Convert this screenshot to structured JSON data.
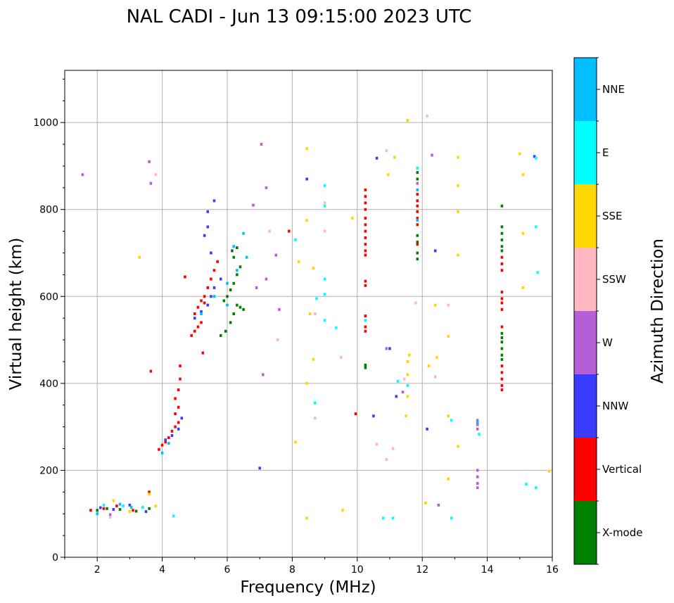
{
  "chart_data": {
    "type": "scatter",
    "title": "NAL CADI - Jun 13 09:15:00 2023 UTC",
    "xlabel": "Frequency (MHz)",
    "ylabel": "Virtual height (km)",
    "xlim": [
      1,
      16
    ],
    "ylim": [
      0,
      1120
    ],
    "xticks": [
      2,
      4,
      6,
      8,
      10,
      12,
      14,
      16
    ],
    "yticks": [
      0,
      200,
      400,
      600,
      800,
      1000
    ],
    "grid": true,
    "colorbar": {
      "label": "Azimuth Direction",
      "categories": [
        {
          "name": "X-mode",
          "color": "#008000"
        },
        {
          "name": "Vertical",
          "color": "#ff0000"
        },
        {
          "name": "NNW",
          "color": "#3b3bff"
        },
        {
          "name": "W",
          "color": "#b65ed6"
        },
        {
          "name": "SSW",
          "color": "#ffb6c1"
        },
        {
          "name": "SSE",
          "color": "#ffd700"
        },
        {
          "name": "E",
          "color": "#00ffff"
        },
        {
          "name": "NNE",
          "color": "#00bfff"
        }
      ]
    },
    "series": [
      {
        "name": "X-mode",
        "points": [
          [
            2.0,
            108
          ],
          [
            2.3,
            112
          ],
          [
            2.7,
            110
          ],
          [
            3.2,
            106
          ],
          [
            3.6,
            112
          ],
          [
            5.8,
            510
          ],
          [
            5.95,
            520
          ],
          [
            6.1,
            540
          ],
          [
            6.2,
            560
          ],
          [
            6.3,
            580
          ],
          [
            6.4,
            575
          ],
          [
            6.5,
            570
          ],
          [
            5.9,
            590
          ],
          [
            6.0,
            600
          ],
          [
            6.1,
            615
          ],
          [
            6.2,
            630
          ],
          [
            6.3,
            650
          ],
          [
            6.4,
            668
          ],
          [
            6.2,
            690
          ],
          [
            6.3,
            712
          ],
          [
            6.15,
            705
          ],
          [
            10.25,
            442
          ],
          [
            10.25,
            436
          ],
          [
            11.85,
            885
          ],
          [
            11.85,
            870
          ],
          [
            11.85,
            740
          ],
          [
            11.85,
            725
          ],
          [
            11.85,
            700
          ],
          [
            11.85,
            686
          ],
          [
            14.45,
            808
          ],
          [
            14.45,
            760
          ],
          [
            14.45,
            745
          ],
          [
            14.45,
            730
          ],
          [
            14.45,
            715
          ],
          [
            14.45,
            705
          ],
          [
            14.45,
            515
          ],
          [
            14.45,
            505
          ],
          [
            14.45,
            495
          ],
          [
            14.45,
            480
          ],
          [
            14.45,
            465
          ],
          [
            14.45,
            455
          ]
        ]
      },
      {
        "name": "Vertical",
        "points": [
          [
            1.8,
            108
          ],
          [
            2.2,
            112
          ],
          [
            2.6,
            118
          ],
          [
            3.1,
            108
          ],
          [
            3.6,
            150
          ],
          [
            3.9,
            248
          ],
          [
            4.0,
            258
          ],
          [
            4.1,
            265
          ],
          [
            4.2,
            275
          ],
          [
            4.3,
            290
          ],
          [
            4.4,
            300
          ],
          [
            4.5,
            310
          ],
          [
            4.4,
            330
          ],
          [
            4.5,
            345
          ],
          [
            4.4,
            365
          ],
          [
            4.5,
            385
          ],
          [
            4.55,
            410
          ],
          [
            4.55,
            440
          ],
          [
            3.65,
            428
          ],
          [
            4.9,
            510
          ],
          [
            5.0,
            520
          ],
          [
            5.1,
            530
          ],
          [
            5.2,
            540
          ],
          [
            5.0,
            560
          ],
          [
            5.1,
            575
          ],
          [
            5.2,
            590
          ],
          [
            5.3,
            600
          ],
          [
            5.4,
            620
          ],
          [
            5.5,
            640
          ],
          [
            5.6,
            660
          ],
          [
            5.7,
            680
          ],
          [
            5.3,
            585
          ],
          [
            5.25,
            470
          ],
          [
            4.7,
            645
          ],
          [
            7.9,
            750
          ],
          [
            9.95,
            330
          ],
          [
            10.25,
            845
          ],
          [
            10.25,
            830
          ],
          [
            10.25,
            815
          ],
          [
            10.25,
            800
          ],
          [
            10.25,
            780
          ],
          [
            10.25,
            765
          ],
          [
            10.25,
            750
          ],
          [
            10.25,
            735
          ],
          [
            10.25,
            720
          ],
          [
            10.25,
            705
          ],
          [
            10.25,
            695
          ],
          [
            10.25,
            635
          ],
          [
            10.25,
            625
          ],
          [
            10.25,
            555
          ],
          [
            10.25,
            530
          ],
          [
            10.25,
            520
          ],
          [
            11.85,
            835
          ],
          [
            11.85,
            820
          ],
          [
            11.85,
            808
          ],
          [
            11.85,
            795
          ],
          [
            11.85,
            780
          ],
          [
            11.85,
            765
          ],
          [
            11.85,
            720
          ],
          [
            14.45,
            690
          ],
          [
            14.45,
            675
          ],
          [
            14.45,
            660
          ],
          [
            14.45,
            610
          ],
          [
            14.45,
            595
          ],
          [
            14.45,
            585
          ],
          [
            14.45,
            570
          ],
          [
            14.45,
            530
          ],
          [
            14.45,
            440
          ],
          [
            14.45,
            425
          ],
          [
            14.45,
            410
          ],
          [
            14.45,
            395
          ],
          [
            14.45,
            385
          ]
        ]
      },
      {
        "name": "NNW",
        "points": [
          [
            2.1,
            114
          ],
          [
            2.5,
            110
          ],
          [
            3.0,
            120
          ],
          [
            3.5,
            105
          ],
          [
            4.1,
            270
          ],
          [
            4.3,
            280
          ],
          [
            4.5,
            295
          ],
          [
            4.6,
            320
          ],
          [
            5.0,
            550
          ],
          [
            5.2,
            565
          ],
          [
            5.4,
            580
          ],
          [
            5.5,
            600
          ],
          [
            5.6,
            620
          ],
          [
            5.8,
            640
          ],
          [
            5.5,
            700
          ],
          [
            5.3,
            740
          ],
          [
            5.4,
            760
          ],
          [
            5.6,
            820
          ],
          [
            5.4,
            795
          ],
          [
            7.0,
            205
          ],
          [
            8.45,
            870
          ],
          [
            10.6,
            918
          ],
          [
            11.2,
            370
          ],
          [
            12.15,
            295
          ],
          [
            12.4,
            705
          ],
          [
            15.45,
            922
          ],
          [
            10.5,
            325
          ],
          [
            11.0,
            480
          ]
        ]
      },
      {
        "name": "W",
        "points": [
          [
            1.55,
            880
          ],
          [
            2.4,
            98
          ],
          [
            3.6,
            910
          ],
          [
            3.65,
            860
          ],
          [
            7.05,
            950
          ],
          [
            7.2,
            850
          ],
          [
            6.8,
            810
          ],
          [
            7.5,
            695
          ],
          [
            7.2,
            640
          ],
          [
            7.6,
            570
          ],
          [
            7.1,
            420
          ],
          [
            6.9,
            620
          ],
          [
            10.9,
            480
          ],
          [
            11.4,
            380
          ],
          [
            12.5,
            120
          ],
          [
            13.7,
            315
          ],
          [
            13.7,
            305
          ],
          [
            13.7,
            295
          ],
          [
            13.7,
            200
          ],
          [
            13.7,
            185
          ],
          [
            13.7,
            170
          ],
          [
            13.7,
            160
          ],
          [
            11.85,
            860
          ],
          [
            12.3,
            925
          ]
        ]
      },
      {
        "name": "SSW",
        "points": [
          [
            2.4,
            92
          ],
          [
            3.8,
            880
          ],
          [
            7.3,
            750
          ],
          [
            7.55,
            500
          ],
          [
            9.0,
            815
          ],
          [
            9.0,
            750
          ],
          [
            8.7,
            560
          ],
          [
            8.7,
            320
          ],
          [
            9.5,
            460
          ],
          [
            10.6,
            260
          ],
          [
            10.9,
            225
          ],
          [
            11.1,
            250
          ],
          [
            10.9,
            935
          ],
          [
            11.45,
            410
          ],
          [
            11.8,
            585
          ],
          [
            12.15,
            1015
          ],
          [
            12.8,
            580
          ],
          [
            12.4,
            415
          ]
        ]
      },
      {
        "name": "SSE",
        "points": [
          [
            2.5,
            130
          ],
          [
            3.0,
            105
          ],
          [
            3.3,
            690
          ],
          [
            3.6,
            145
          ],
          [
            3.8,
            118
          ],
          [
            8.1,
            265
          ],
          [
            8.2,
            680
          ],
          [
            8.45,
            940
          ],
          [
            8.45,
            775
          ],
          [
            8.65,
            665
          ],
          [
            8.65,
            455
          ],
          [
            8.45,
            400
          ],
          [
            8.45,
            90
          ],
          [
            8.55,
            560
          ],
          [
            9.55,
            108
          ],
          [
            9.85,
            780
          ],
          [
            10.95,
            880
          ],
          [
            11.15,
            920
          ],
          [
            11.55,
            1005
          ],
          [
            11.6,
            465
          ],
          [
            11.55,
            450
          ],
          [
            11.55,
            420
          ],
          [
            11.55,
            370
          ],
          [
            11.5,
            325
          ],
          [
            12.1,
            125
          ],
          [
            12.2,
            440
          ],
          [
            12.4,
            580
          ],
          [
            12.45,
            460
          ],
          [
            13.1,
            920
          ],
          [
            13.1,
            855
          ],
          [
            13.1,
            795
          ],
          [
            13.1,
            695
          ],
          [
            13.1,
            255
          ],
          [
            12.8,
            508
          ],
          [
            12.8,
            325
          ],
          [
            12.8,
            180
          ],
          [
            15.1,
            880
          ],
          [
            15.1,
            745
          ],
          [
            15.1,
            620
          ],
          [
            15.0,
            928
          ],
          [
            15.9,
            198
          ]
        ]
      },
      {
        "name": "E",
        "points": [
          [
            2.2,
            120
          ],
          [
            2.8,
            118
          ],
          [
            3.4,
            115
          ],
          [
            4.35,
            95
          ],
          [
            8.1,
            730
          ],
          [
            9.0,
            855
          ],
          [
            9.0,
            808
          ],
          [
            9.0,
            640
          ],
          [
            9.0,
            605
          ],
          [
            9.0,
            545
          ],
          [
            8.75,
            595
          ],
          [
            8.7,
            355
          ],
          [
            9.35,
            528
          ],
          [
            10.25,
            545
          ],
          [
            10.8,
            90
          ],
          [
            11.1,
            90
          ],
          [
            11.25,
            405
          ],
          [
            11.55,
            395
          ],
          [
            11.85,
            895
          ],
          [
            12.9,
            315
          ],
          [
            12.9,
            90
          ],
          [
            15.2,
            168
          ],
          [
            15.5,
            160
          ],
          [
            15.5,
            760
          ],
          [
            15.5,
            918
          ],
          [
            15.55,
            655
          ],
          [
            13.75,
            283
          ]
        ]
      },
      {
        "name": "NNE",
        "points": [
          [
            2.0,
            100
          ],
          [
            2.7,
            122
          ],
          [
            3.05,
            115
          ],
          [
            4.0,
            240
          ],
          [
            4.2,
            262
          ],
          [
            5.2,
            560
          ],
          [
            5.6,
            600
          ],
          [
            6.0,
            630
          ],
          [
            6.2,
            715
          ],
          [
            6.5,
            745
          ],
          [
            6.3,
            660
          ],
          [
            6.6,
            690
          ],
          [
            6.0,
            580
          ],
          [
            11.85,
            775
          ],
          [
            11.85,
            845
          ],
          [
            13.7,
            310
          ]
        ]
      }
    ]
  }
}
